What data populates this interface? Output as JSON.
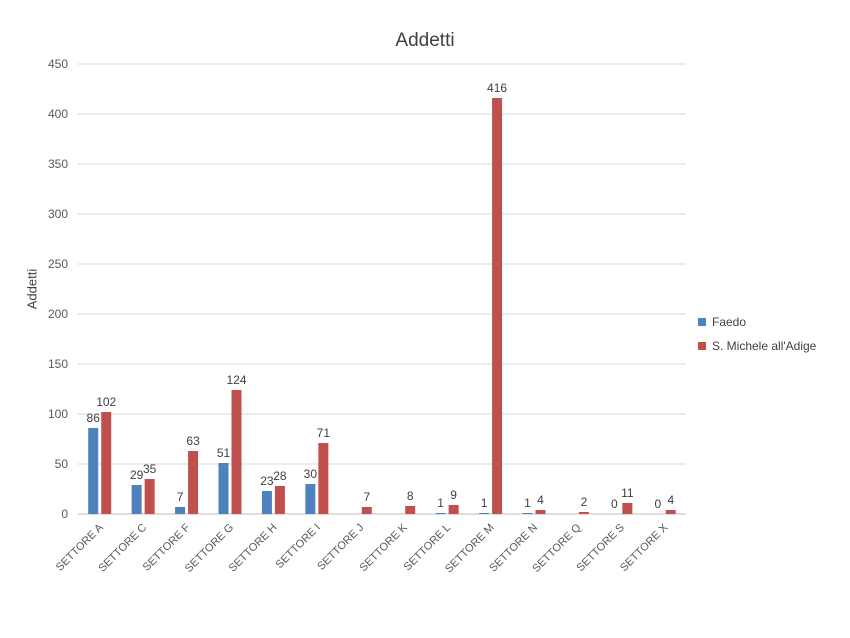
{
  "chart_data": {
    "type": "bar",
    "title": "Addetti",
    "xlabel": "",
    "ylabel": "Addetti",
    "ylim": [
      0,
      450
    ],
    "yticks": [
      0,
      50,
      100,
      150,
      200,
      250,
      300,
      350,
      400,
      450
    ],
    "grid": true,
    "legend_position": "right",
    "categories": [
      "SETTORE A",
      "SETTORE C",
      "SETTORE F",
      "SETTORE G",
      "SETTORE H",
      "SETTORE I",
      "SETTORE J",
      "SETTORE K",
      "SETTORE L",
      "SETTORE M",
      "SETTORE N",
      "SETTORE Q",
      "SETTORE S",
      "SETTORE X"
    ],
    "series": [
      {
        "name": "Faedo",
        "color": "#4F81BD",
        "values": [
          86,
          29,
          7,
          51,
          23,
          30,
          null,
          null,
          1,
          1,
          1,
          null,
          0,
          0
        ]
      },
      {
        "name": "S. Michele all'Adige",
        "color": "#C0504D",
        "values": [
          102,
          35,
          63,
          124,
          28,
          71,
          7,
          8,
          9,
          416,
          4,
          2,
          11,
          4
        ]
      }
    ]
  }
}
